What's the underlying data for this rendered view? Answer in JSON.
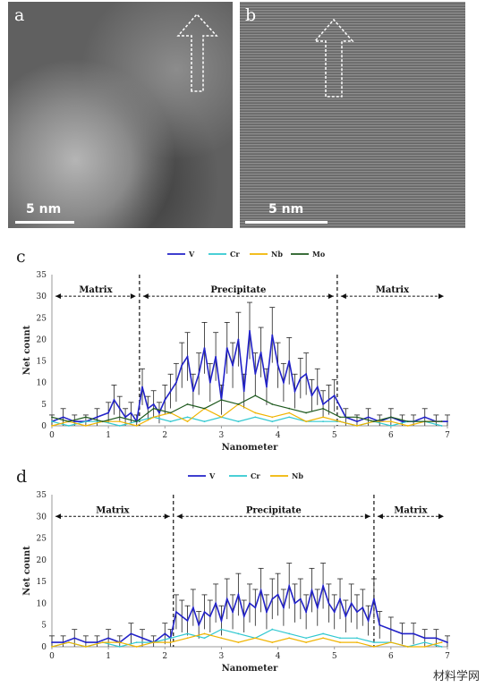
{
  "panels": {
    "a": {
      "letter": "a",
      "scale_label": "5 nm"
    },
    "b": {
      "letter": "b",
      "scale_label": "5 nm"
    },
    "c": {
      "letter": "c"
    },
    "d": {
      "letter": "d"
    }
  },
  "watermark": "材料学网",
  "colors": {
    "V": "#2222c8",
    "Cr": "#30c8d0",
    "Nb": "#f0b400",
    "Mo": "#1f5a1f"
  },
  "chart_data": [
    {
      "type": "line",
      "xlabel": "Nanometer",
      "ylabel": "Net count",
      "xlim": [
        0,
        7
      ],
      "ylim": [
        0,
        35
      ],
      "xticks": [
        0,
        1,
        2,
        3,
        4,
        5,
        6,
        7
      ],
      "yticks": [
        0,
        5,
        10,
        15,
        20,
        25,
        30,
        35
      ],
      "legend_position": "top-center",
      "regions": [
        {
          "label": "Matrix",
          "from": 0,
          "to": 1.55
        },
        {
          "label": "Precipitate",
          "from": 1.55,
          "to": 5.05
        },
        {
          "label": "Matrix",
          "from": 5.05,
          "to": 7
        }
      ],
      "boundaries": [
        1.55,
        5.05
      ],
      "series": [
        {
          "name": "V",
          "x": [
            0,
            0.2,
            0.4,
            0.6,
            0.8,
            1.0,
            1.1,
            1.2,
            1.3,
            1.4,
            1.5,
            1.6,
            1.7,
            1.8,
            1.9,
            2.0,
            2.1,
            2.2,
            2.3,
            2.4,
            2.5,
            2.6,
            2.7,
            2.8,
            2.9,
            3.0,
            3.1,
            3.2,
            3.3,
            3.4,
            3.5,
            3.6,
            3.7,
            3.8,
            3.9,
            4.0,
            4.1,
            4.2,
            4.3,
            4.4,
            4.5,
            4.6,
            4.7,
            4.8,
            4.9,
            5.0,
            5.2,
            5.4,
            5.6,
            5.8,
            6.0,
            6.2,
            6.4,
            6.6,
            6.8,
            7.0
          ],
          "y": [
            1,
            2,
            1,
            1,
            2,
            3,
            6,
            4,
            2,
            3,
            1,
            9,
            4,
            5,
            3,
            6,
            8,
            10,
            14,
            16,
            8,
            12,
            18,
            10,
            16,
            6,
            18,
            14,
            20,
            8,
            22,
            12,
            17,
            9,
            21,
            14,
            10,
            15,
            8,
            11,
            12,
            7,
            9,
            5,
            6,
            7,
            2,
            1,
            2,
            1,
            2,
            1,
            1,
            2,
            1,
            1
          ]
        },
        {
          "name": "Cr",
          "x": [
            0,
            0.3,
            0.6,
            0.9,
            1.2,
            1.5,
            1.8,
            2.1,
            2.4,
            2.7,
            3.0,
            3.3,
            3.6,
            3.9,
            4.2,
            4.5,
            4.8,
            5.1,
            5.4,
            5.7,
            6.0,
            6.3,
            6.6,
            6.9
          ],
          "y": [
            1,
            0,
            1,
            1,
            0,
            1,
            2,
            1,
            2,
            1,
            2,
            1,
            2,
            1,
            2,
            1,
            1,
            1,
            0,
            1,
            0,
            1,
            1,
            0
          ]
        },
        {
          "name": "Nb",
          "x": [
            0,
            0.3,
            0.6,
            0.9,
            1.2,
            1.5,
            1.8,
            2.1,
            2.4,
            2.7,
            3.0,
            3.3,
            3.6,
            3.9,
            4.2,
            4.5,
            4.8,
            5.1,
            5.4,
            5.7,
            6.0,
            6.3,
            6.6,
            6.9
          ],
          "y": [
            0,
            1,
            0,
            1,
            1,
            0,
            2,
            3,
            1,
            4,
            2,
            5,
            3,
            2,
            3,
            1,
            2,
            1,
            0,
            1,
            1,
            0,
            1,
            1
          ]
        },
        {
          "name": "Mo",
          "x": [
            0,
            0.3,
            0.6,
            0.9,
            1.2,
            1.5,
            1.8,
            2.1,
            2.4,
            2.7,
            3.0,
            3.3,
            3.6,
            3.9,
            4.2,
            4.5,
            4.8,
            5.1,
            5.4,
            5.7,
            6.0,
            6.3,
            6.6,
            6.9
          ],
          "y": [
            2,
            1,
            2,
            1,
            2,
            1,
            4,
            3,
            5,
            4,
            6,
            5,
            7,
            5,
            4,
            3,
            4,
            2,
            2,
            1,
            2,
            1,
            1,
            1
          ]
        }
      ]
    },
    {
      "type": "line",
      "xlabel": "Nanometer",
      "ylabel": "Net count",
      "xlim": [
        0,
        7
      ],
      "ylim": [
        0,
        35
      ],
      "xticks": [
        0,
        1,
        2,
        3,
        4,
        5,
        6,
        7
      ],
      "yticks": [
        0,
        5,
        10,
        15,
        20,
        25,
        30,
        35
      ],
      "legend_position": "top-center",
      "regions": [
        {
          "label": "Matrix",
          "from": 0,
          "to": 2.15
        },
        {
          "label": "Precipitate",
          "from": 2.15,
          "to": 5.7
        },
        {
          "label": "Matrix",
          "from": 5.7,
          "to": 7
        }
      ],
      "boundaries": [
        2.15,
        5.7
      ],
      "series": [
        {
          "name": "V",
          "x": [
            0,
            0.2,
            0.4,
            0.6,
            0.8,
            1.0,
            1.2,
            1.4,
            1.6,
            1.8,
            2.0,
            2.1,
            2.2,
            2.3,
            2.4,
            2.5,
            2.6,
            2.7,
            2.8,
            2.9,
            3.0,
            3.1,
            3.2,
            3.3,
            3.4,
            3.5,
            3.6,
            3.7,
            3.8,
            3.9,
            4.0,
            4.1,
            4.2,
            4.3,
            4.4,
            4.5,
            4.6,
            4.7,
            4.8,
            4.9,
            5.0,
            5.1,
            5.2,
            5.3,
            5.4,
            5.5,
            5.6,
            5.7,
            5.8,
            6.0,
            6.2,
            6.4,
            6.6,
            6.8,
            7.0
          ],
          "y": [
            1,
            1,
            2,
            1,
            1,
            2,
            1,
            3,
            2,
            1,
            3,
            2,
            8,
            7,
            6,
            9,
            5,
            8,
            7,
            10,
            6,
            11,
            8,
            12,
            7,
            10,
            9,
            13,
            8,
            11,
            12,
            9,
            14,
            10,
            11,
            8,
            13,
            9,
            14,
            10,
            8,
            11,
            7,
            10,
            8,
            9,
            6,
            11,
            5,
            4,
            3,
            3,
            2,
            2,
            1
          ]
        },
        {
          "name": "Cr",
          "x": [
            0,
            0.3,
            0.6,
            0.9,
            1.2,
            1.5,
            1.8,
            2.1,
            2.4,
            2.7,
            3.0,
            3.3,
            3.6,
            3.9,
            4.2,
            4.5,
            4.8,
            5.1,
            5.4,
            5.7,
            6.0,
            6.3,
            6.6,
            6.9
          ],
          "y": [
            0,
            1,
            0,
            1,
            0,
            1,
            1,
            2,
            3,
            2,
            4,
            3,
            2,
            4,
            3,
            2,
            3,
            2,
            2,
            1,
            1,
            0,
            1,
            0
          ]
        },
        {
          "name": "Nb",
          "x": [
            0,
            0.3,
            0.6,
            0.9,
            1.2,
            1.5,
            1.8,
            2.1,
            2.4,
            2.7,
            3.0,
            3.3,
            3.6,
            3.9,
            4.2,
            4.5,
            4.8,
            5.1,
            5.4,
            5.7,
            6.0,
            6.3,
            6.6,
            6.9
          ],
          "y": [
            0,
            1,
            0,
            1,
            1,
            0,
            1,
            1,
            2,
            3,
            2,
            1,
            2,
            1,
            2,
            1,
            2,
            1,
            1,
            0,
            1,
            0,
            0,
            1
          ]
        }
      ]
    }
  ]
}
